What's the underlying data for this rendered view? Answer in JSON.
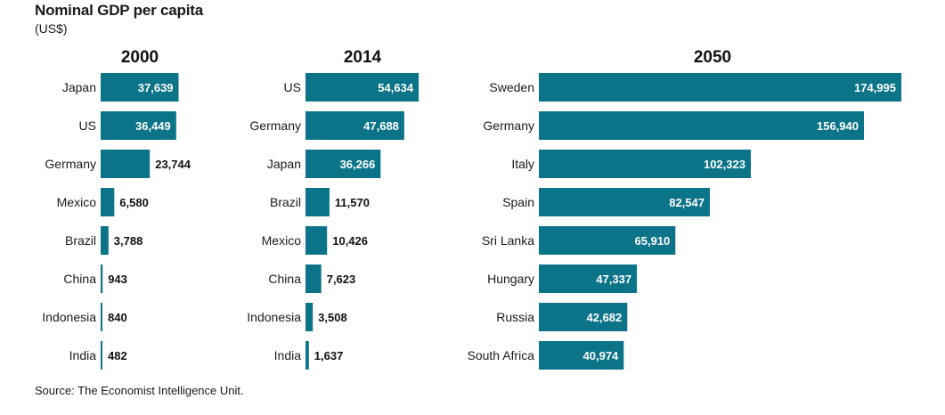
{
  "title": "Nominal GDP per capita",
  "subtitle": "(US$)",
  "source": "Source: The Economist Intelligence Unit.",
  "colors": {
    "bar": "#0b7489"
  },
  "chart_data": [
    {
      "type": "bar",
      "title": "2000",
      "categories": [
        "Japan",
        "US",
        "Germany",
        "Mexico",
        "Brazil",
        "China",
        "Indonesia",
        "India"
      ],
      "values": [
        37639,
        36449,
        23744,
        6580,
        3788,
        943,
        840,
        482
      ],
      "value_labels": [
        "37,639",
        "36,449",
        "23,744",
        "6,580",
        "3,788",
        "943",
        "840",
        "482"
      ]
    },
    {
      "type": "bar",
      "title": "2014",
      "categories": [
        "US",
        "Germany",
        "Japan",
        "Brazil",
        "Mexico",
        "China",
        "Indonesia",
        "India"
      ],
      "values": [
        54634,
        47688,
        36266,
        11570,
        10426,
        7623,
        3508,
        1637
      ],
      "value_labels": [
        "54,634",
        "47,688",
        "36,266",
        "11,570",
        "10,426",
        "7,623",
        "3,508",
        "1,637"
      ]
    },
    {
      "type": "bar",
      "title": "2050",
      "categories": [
        "Sweden",
        "Germany",
        "Italy",
        "Spain",
        "Sri Lanka",
        "Hungary",
        "Russia",
        "South Africa"
      ],
      "values": [
        174995,
        156940,
        102323,
        82547,
        65910,
        47337,
        42682,
        40974
      ],
      "value_labels": [
        "174,995",
        "156,940",
        "102,323",
        "82,547",
        "65,910",
        "47,337",
        "42,682",
        "40,974"
      ]
    }
  ]
}
